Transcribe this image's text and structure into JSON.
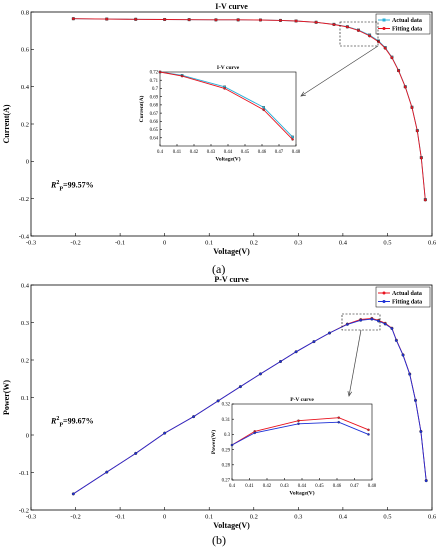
{
  "panels": [
    {
      "label": "(a)",
      "r2_value": "=99.57%"
    },
    {
      "label": "(b)",
      "r2_value": "=99.67%"
    }
  ],
  "colors": {
    "actual": "#2ab0d8",
    "fitting": "#e8121e",
    "actual_b": "#e8121e",
    "fitting_b": "#1c2fd6"
  },
  "chart_data": [
    {
      "type": "line",
      "title": "I-V curve",
      "xlabel": "Voltage(V)",
      "ylabel": "Current(A)",
      "xlim": [
        -0.3,
        0.6
      ],
      "ylim": [
        -0.4,
        0.8
      ],
      "xticks": [
        -0.3,
        -0.2,
        -0.1,
        0,
        0.1,
        0.2,
        0.3,
        0.4,
        0.5,
        0.6
      ],
      "yticks": [
        -0.4,
        -0.2,
        0,
        0.2,
        0.4,
        0.6,
        0.8
      ],
      "legend": "top-right",
      "series": [
        {
          "name": "Actual data",
          "marker": "square",
          "x": [
            -0.205,
            -0.13,
            -0.065,
            0,
            0.055,
            0.115,
            0.165,
            0.215,
            0.26,
            0.295,
            0.34,
            0.38,
            0.41,
            0.435,
            0.46,
            0.48,
            0.495,
            0.51,
            0.525,
            0.54,
            0.555,
            0.567,
            0.576,
            0.585
          ],
          "y": [
            0.764,
            0.762,
            0.761,
            0.76,
            0.759,
            0.758,
            0.758,
            0.757,
            0.755,
            0.752,
            0.745,
            0.734,
            0.721,
            0.703,
            0.676,
            0.645,
            0.61,
            0.558,
            0.487,
            0.4,
            0.29,
            0.165,
            0.02,
            -0.205
          ]
        },
        {
          "name": "Fitting data",
          "marker": "circle",
          "x": [
            -0.205,
            -0.13,
            -0.065,
            0,
            0.055,
            0.115,
            0.165,
            0.215,
            0.26,
            0.295,
            0.34,
            0.38,
            0.41,
            0.435,
            0.46,
            0.48,
            0.495,
            0.51,
            0.525,
            0.54,
            0.555,
            0.567,
            0.576,
            0.585
          ],
          "y": [
            0.764,
            0.762,
            0.761,
            0.76,
            0.759,
            0.758,
            0.758,
            0.757,
            0.755,
            0.752,
            0.745,
            0.733,
            0.72,
            0.701,
            0.672,
            0.641,
            0.606,
            0.555,
            0.485,
            0.398,
            0.288,
            0.163,
            0.018,
            -0.207
          ]
        }
      ],
      "inset": {
        "title": "I-V curve",
        "xlabel": "Voltage(V)",
        "ylabel": "Current(A)",
        "xlim": [
          0.4,
          0.48
        ],
        "ylim": [
          0.63,
          0.72
        ],
        "xticks": [
          0.4,
          0.41,
          0.42,
          0.43,
          0.44,
          0.45,
          0.46,
          0.47,
          0.48
        ],
        "yticks": [
          0.64,
          0.65,
          0.66,
          0.67,
          0.68,
          0.69,
          0.7,
          0.71,
          0.72
        ],
        "series": [
          {
            "name": "Actual data",
            "x": [
              0.4,
              0.413,
              0.438,
              0.461,
              0.478
            ],
            "y": [
              0.72,
              0.716,
              0.702,
              0.677,
              0.641
            ]
          },
          {
            "name": "Fitting data",
            "x": [
              0.4,
              0.413,
              0.438,
              0.461,
              0.478
            ],
            "y": [
              0.72,
              0.715,
              0.7,
              0.674,
              0.638
            ]
          }
        ]
      }
    },
    {
      "type": "line",
      "title": "P-V curve",
      "xlabel": "Voltage(V)",
      "ylabel": "Power(W)",
      "xlim": [
        -0.3,
        0.6
      ],
      "ylim": [
        -0.2,
        0.4
      ],
      "xticks": [
        -0.3,
        -0.2,
        -0.1,
        0,
        0.1,
        0.2,
        0.3,
        0.4,
        0.5,
        0.6
      ],
      "yticks": [
        -0.2,
        -0.1,
        0,
        0.1,
        0.2,
        0.3,
        0.4
      ],
      "legend": "top-right",
      "series": [
        {
          "name": "Actual data",
          "marker": "circle",
          "x": [
            -0.205,
            -0.13,
            -0.065,
            0,
            0.065,
            0.12,
            0.17,
            0.215,
            0.26,
            0.295,
            0.335,
            0.37,
            0.41,
            0.44,
            0.465,
            0.48,
            0.495,
            0.51,
            0.52,
            0.535,
            0.55,
            0.563,
            0.575,
            0.587
          ],
          "y": [
            -0.157,
            -0.099,
            -0.049,
            0.005,
            0.049,
            0.091,
            0.129,
            0.163,
            0.196,
            0.222,
            0.249,
            0.272,
            0.296,
            0.308,
            0.311,
            0.306,
            0.298,
            0.285,
            0.253,
            0.214,
            0.163,
            0.093,
            0.01,
            -0.121
          ]
        },
        {
          "name": "Fitting data",
          "marker": "circle",
          "x": [
            -0.205,
            -0.13,
            -0.065,
            0,
            0.065,
            0.12,
            0.17,
            0.215,
            0.26,
            0.295,
            0.335,
            0.37,
            0.41,
            0.44,
            0.465,
            0.48,
            0.495,
            0.51,
            0.52,
            0.535,
            0.55,
            0.563,
            0.575,
            0.587
          ],
          "y": [
            -0.157,
            -0.099,
            -0.049,
            0.005,
            0.049,
            0.091,
            0.129,
            0.163,
            0.196,
            0.222,
            0.249,
            0.272,
            0.295,
            0.306,
            0.309,
            0.304,
            0.296,
            0.284,
            0.252,
            0.213,
            0.162,
            0.092,
            0.009,
            -0.122
          ]
        }
      ],
      "inset": {
        "title": "P-V curve",
        "xlabel": "Voltage(V)",
        "ylabel": "Power(W)",
        "xlim": [
          0.4,
          0.48
        ],
        "ylim": [
          0.27,
          0.32
        ],
        "xticks": [
          0.4,
          0.41,
          0.42,
          0.43,
          0.44,
          0.45,
          0.46,
          0.47,
          0.48
        ],
        "yticks": [
          0.27,
          0.28,
          0.29,
          0.3,
          0.31,
          0.32
        ],
        "series": [
          {
            "name": "Actual data",
            "x": [
              0.4,
              0.413,
              0.438,
              0.461,
              0.478
            ],
            "y": [
              0.293,
              0.302,
              0.309,
              0.311,
              0.303
            ]
          },
          {
            "name": "Fitting data",
            "x": [
              0.4,
              0.413,
              0.438,
              0.461,
              0.478
            ],
            "y": [
              0.293,
              0.301,
              0.307,
              0.308,
              0.3
            ]
          }
        ]
      }
    }
  ]
}
